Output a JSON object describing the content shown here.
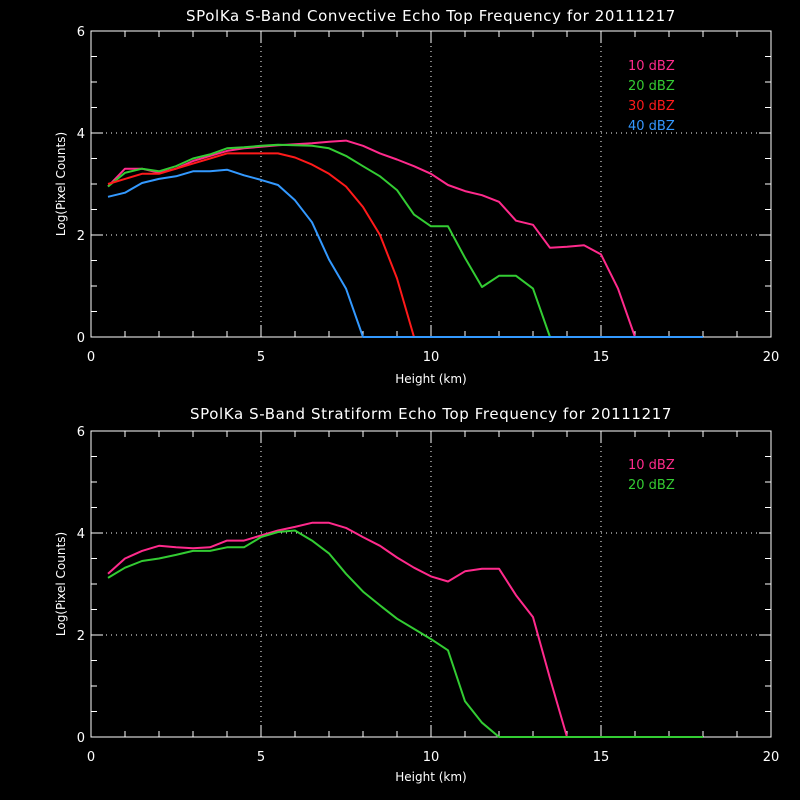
{
  "chart_data": [
    {
      "type": "line",
      "title": "SPolKa S-Band Convective Echo Top Frequency for 20111217",
      "xlabel": "Height (km)",
      "ylabel": "Log(Pixel Counts)",
      "xlim": [
        0,
        20
      ],
      "ylim": [
        0,
        6
      ],
      "xticks": [
        "0",
        "5",
        "10",
        "15",
        "20"
      ],
      "yticks": [
        "0",
        "2",
        "4",
        "6"
      ],
      "grid": "dotted at x=5,10,15 and y=2,4",
      "legend_position": "top-right",
      "series": [
        {
          "name": "10 dBZ",
          "color": "#ff2a8c",
          "x": [
            0.5,
            1,
            1.5,
            2,
            2.5,
            3,
            3.5,
            4,
            4.5,
            5,
            5.5,
            6,
            6.5,
            7,
            7.5,
            8,
            8.5,
            9,
            9.5,
            10,
            10.5,
            11,
            11.5,
            12,
            12.5,
            13,
            13.5,
            14,
            14.5,
            15,
            15.5,
            16
          ],
          "y": [
            2.95,
            3.3,
            3.3,
            3.22,
            3.3,
            3.45,
            3.55,
            3.65,
            3.7,
            3.73,
            3.76,
            3.78,
            3.8,
            3.83,
            3.85,
            3.75,
            3.6,
            3.48,
            3.35,
            3.2,
            2.98,
            2.86,
            2.78,
            2.65,
            2.28,
            2.2,
            1.75,
            1.77,
            1.8,
            1.62,
            0.95,
            0
          ]
        },
        {
          "name": "20 dBZ",
          "color": "#33cc33",
          "x": [
            0.5,
            1,
            1.5,
            2,
            2.5,
            3,
            3.5,
            4,
            4.5,
            5,
            5.5,
            6,
            6.5,
            7,
            7.5,
            8,
            8.5,
            9,
            9.5,
            10,
            10.5,
            11,
            11.5,
            12,
            12.5,
            13,
            13.5
          ],
          "y": [
            2.95,
            3.22,
            3.3,
            3.25,
            3.35,
            3.5,
            3.58,
            3.7,
            3.72,
            3.75,
            3.77,
            3.76,
            3.75,
            3.7,
            3.55,
            3.35,
            3.15,
            2.88,
            2.4,
            2.17,
            2.17,
            1.55,
            0.98,
            1.2,
            1.2,
            0.95,
            0
          ]
        },
        {
          "name": "30 dBZ",
          "color": "#ff1a1a",
          "x": [
            0.5,
            1,
            1.5,
            2,
            2.5,
            3,
            3.5,
            4,
            4.5,
            5,
            5.5,
            6,
            6.5,
            7,
            7.5,
            8,
            8.5,
            9,
            9.5
          ],
          "y": [
            3.0,
            3.1,
            3.2,
            3.2,
            3.3,
            3.4,
            3.5,
            3.6,
            3.6,
            3.6,
            3.6,
            3.52,
            3.38,
            3.2,
            2.95,
            2.55,
            2.0,
            1.15,
            0
          ]
        },
        {
          "name": "40 dBZ",
          "color": "#3399ff",
          "x": [
            0.5,
            1,
            1.5,
            2,
            2.5,
            3,
            3.5,
            4,
            4.5,
            5,
            5.5,
            6,
            6.5,
            7,
            7.5,
            8,
            8.5,
            9,
            9.5,
            10,
            10.5,
            11,
            11.5,
            12,
            12.5,
            13,
            13.5,
            14,
            14.5,
            15,
            15.5,
            16,
            16.5,
            17,
            17.5,
            18
          ],
          "y": [
            2.75,
            2.83,
            3.02,
            3.1,
            3.15,
            3.25,
            3.25,
            3.28,
            3.17,
            3.08,
            2.98,
            2.68,
            2.25,
            1.52,
            0.95,
            0,
            0,
            0,
            0,
            0,
            0,
            0,
            0,
            0,
            0,
            0,
            0,
            0,
            0,
            0,
            0,
            0,
            0,
            0,
            0,
            0
          ]
        }
      ]
    },
    {
      "type": "line",
      "title": "SPolKa S-Band Stratiform Echo Top Frequency for 20111217",
      "xlabel": "Height (km)",
      "ylabel": "Log(Pixel Counts)",
      "xlim": [
        0,
        20
      ],
      "ylim": [
        0,
        6
      ],
      "xticks": [
        "0",
        "5",
        "10",
        "15",
        "20"
      ],
      "yticks": [
        "0",
        "2",
        "4",
        "6"
      ],
      "grid": "dotted at x=5,10,15 and y=2,4",
      "legend_position": "top-right",
      "series": [
        {
          "name": "10 dBZ",
          "color": "#ff2a8c",
          "x": [
            0.5,
            1,
            1.5,
            2,
            2.5,
            3,
            3.5,
            4,
            4.5,
            5,
            5.5,
            6,
            6.5,
            7,
            7.5,
            8,
            8.5,
            9,
            9.5,
            10,
            10.5,
            11,
            11.5,
            12,
            12.5,
            13,
            13.5,
            14
          ],
          "y": [
            3.2,
            3.5,
            3.65,
            3.75,
            3.72,
            3.7,
            3.72,
            3.85,
            3.85,
            3.95,
            4.05,
            4.12,
            4.2,
            4.2,
            4.1,
            3.92,
            3.75,
            3.52,
            3.32,
            3.15,
            3.05,
            3.25,
            3.3,
            3.3,
            2.78,
            2.35,
            1.15,
            0
          ]
        },
        {
          "name": "20 dBZ",
          "color": "#33cc33",
          "x": [
            0.5,
            1,
            1.5,
            2,
            2.5,
            3,
            3.5,
            4,
            4.5,
            5,
            5.5,
            6,
            6.5,
            7,
            7.5,
            8,
            8.5,
            9,
            9.5,
            10,
            10.5,
            11,
            11.5,
            12,
            12.5,
            13,
            13.5,
            14,
            14.5,
            15,
            15.5,
            16,
            16.5,
            17,
            17.5,
            18
          ],
          "y": [
            3.12,
            3.32,
            3.45,
            3.5,
            3.57,
            3.65,
            3.65,
            3.72,
            3.72,
            3.92,
            4.02,
            4.05,
            3.85,
            3.6,
            3.2,
            2.85,
            2.58,
            2.32,
            2.12,
            1.92,
            1.7,
            0.7,
            0.28,
            0,
            0,
            0,
            0,
            0,
            0,
            0,
            0,
            0,
            0,
            0,
            0,
            0
          ]
        }
      ]
    }
  ]
}
